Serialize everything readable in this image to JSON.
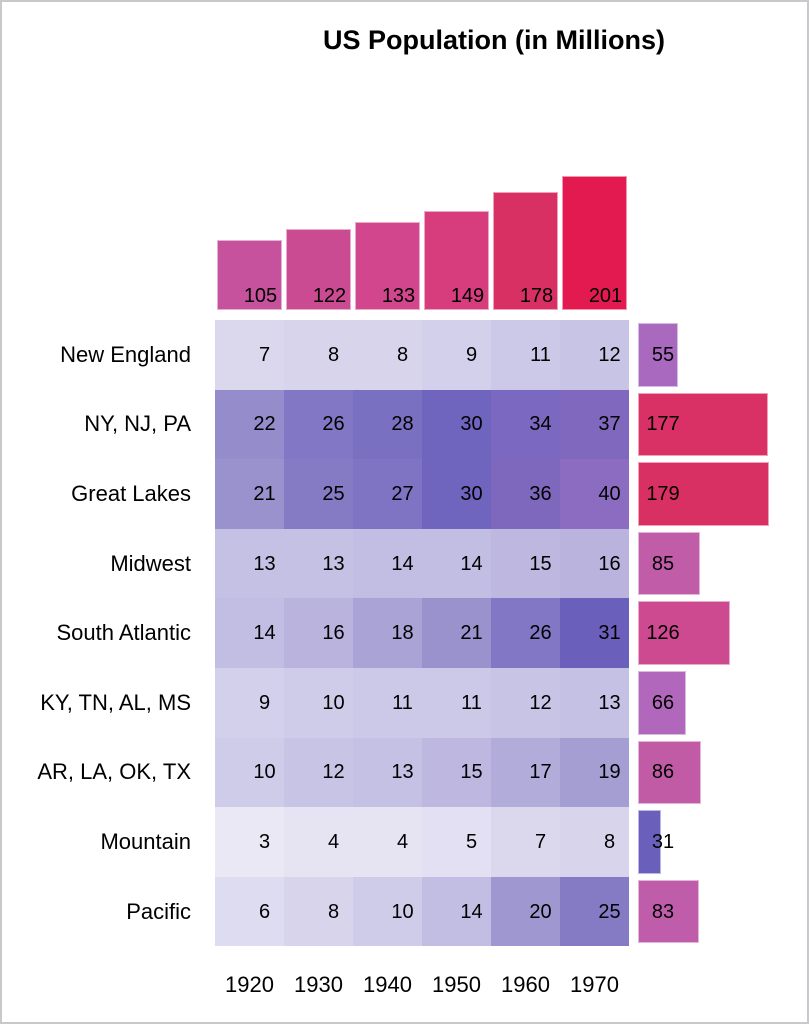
{
  "title": "US Population (in Millions)",
  "chart_data": {
    "type": "heatmap",
    "title": "US Population (in Millions)",
    "columns": [
      "1920",
      "1930",
      "1940",
      "1950",
      "1960",
      "1970"
    ],
    "rows": [
      "New England",
      "NY, NJ, PA",
      "Great Lakes",
      "Midwest",
      "South Atlantic",
      "KY, TN, AL, MS",
      "AR, LA, OK, TX",
      "Mountain",
      "Pacific"
    ],
    "values": [
      [
        7,
        8,
        8,
        9,
        11,
        12
      ],
      [
        22,
        26,
        28,
        30,
        34,
        37
      ],
      [
        21,
        25,
        27,
        30,
        36,
        40
      ],
      [
        13,
        13,
        14,
        14,
        15,
        16
      ],
      [
        14,
        16,
        18,
        21,
        26,
        31
      ],
      [
        9,
        10,
        11,
        11,
        12,
        13
      ],
      [
        10,
        12,
        13,
        15,
        17,
        19
      ],
      [
        3,
        4,
        4,
        5,
        7,
        8
      ],
      [
        6,
        8,
        10,
        14,
        20,
        25
      ]
    ],
    "column_totals": [
      105,
      122,
      133,
      149,
      178,
      201
    ],
    "row_totals": [
      55,
      177,
      179,
      85,
      126,
      66,
      86,
      31,
      83
    ],
    "legend": "none",
    "grid": "off",
    "color_scale_anchors": [
      [
        3,
        "#eae8f5"
      ],
      [
        6,
        "#dedcf0"
      ],
      [
        8,
        "#d7d4ec"
      ],
      [
        10,
        "#cfccea"
      ],
      [
        12,
        "#c8c4e6"
      ],
      [
        14,
        "#c2bde2"
      ],
      [
        16,
        "#b9b3dd"
      ],
      [
        18,
        "#aaa4d6"
      ],
      [
        21,
        "#9a92cd"
      ],
      [
        25,
        "#857bc5"
      ],
      [
        28,
        "#7a70c2"
      ],
      [
        31,
        "#6a60bc"
      ],
      [
        34,
        "#7b68c0"
      ],
      [
        37,
        "#7f68bd"
      ],
      [
        40,
        "#8c6cc1"
      ],
      [
        55,
        "#a869be"
      ],
      [
        66,
        "#b167bb"
      ],
      [
        83,
        "#c05dab"
      ],
      [
        86,
        "#c25ba6"
      ],
      [
        105,
        "#c6529e"
      ],
      [
        122,
        "#cb4b93"
      ],
      [
        133,
        "#d1468c"
      ],
      [
        149,
        "#d73d7d"
      ],
      [
        179,
        "#d93063"
      ],
      [
        201,
        "#e21a50"
      ]
    ],
    "colors": {
      "background": "#ffffff",
      "text": "#000000",
      "frame_border": "#c9c9cc"
    }
  }
}
